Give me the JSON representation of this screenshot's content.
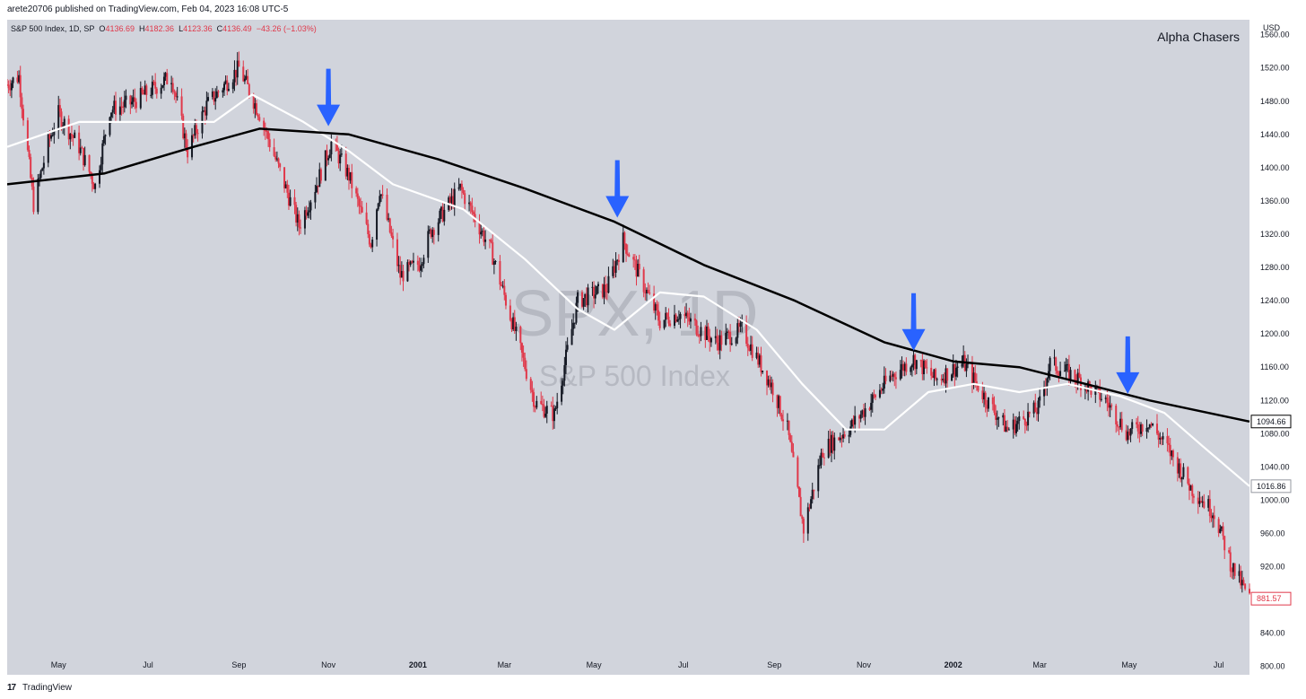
{
  "header": {
    "publisher": "arete20706 published on TradingView.com, Feb 04, 2023 16:08 UTC-5"
  },
  "legend": {
    "symbol": "S&P 500 Index, 1D, SP",
    "o_label": "O",
    "o": "4136.69",
    "h_label": "H",
    "h": "4182.36",
    "l_label": "L",
    "l": "4123.36",
    "c_label": "C",
    "c": "4136.49",
    "change": "−43.26 (−1.03%)"
  },
  "brand": "Alpha Chasers",
  "currency": "USD",
  "watermark": {
    "ticker": "SPX, 1D",
    "name": "S&P 500 Index"
  },
  "footer": {
    "logo": "17",
    "text": "TradingView"
  },
  "colors": {
    "background": "#d1d4dc",
    "up_candle": "#131722",
    "down_candle": "#e0384a",
    "sma_long": "#000000",
    "sma_short": "#ffffff",
    "arrow": "#2962ff"
  },
  "chart_data": {
    "type": "candlestick",
    "symbol": "S&P 500 Index, 1D",
    "x_ticks": [
      "May",
      "Jul",
      "Sep",
      "Nov",
      "2001",
      "Mar",
      "May",
      "Jul",
      "Sep",
      "Nov",
      "2002",
      "Mar",
      "May",
      "Jul"
    ],
    "x_tick_dates": [
      "2000-05-01",
      "2000-07-01",
      "2000-09-01",
      "2000-11-01",
      "2001-01-01",
      "2001-03-01",
      "2001-05-01",
      "2001-07-01",
      "2001-09-01",
      "2001-11-01",
      "2002-01-01",
      "2002-03-01",
      "2002-05-01",
      "2002-07-01"
    ],
    "y_ticks": [
      "800.00",
      "840.00",
      "880.00",
      "920.00",
      "960.00",
      "1000.00",
      "1040.00",
      "1080.00",
      "1120.00",
      "1160.00",
      "1200.00",
      "1240.00",
      "1280.00",
      "1320.00",
      "1360.00",
      "1400.00",
      "1440.00",
      "1480.00",
      "1520.00",
      "1560.00"
    ],
    "ylim": [
      790,
      1578
    ],
    "xlim": [
      "2000-03-27",
      "2002-07-22"
    ],
    "price_path": [
      {
        "date": "2000-03-27",
        "close": 1500
      },
      {
        "date": "2000-04-04",
        "close": 1510
      },
      {
        "date": "2000-04-14",
        "close": 1356
      },
      {
        "date": "2000-04-24",
        "close": 1430
      },
      {
        "date": "2000-05-01",
        "close": 1465
      },
      {
        "date": "2000-05-15",
        "close": 1425
      },
      {
        "date": "2000-05-26",
        "close": 1378
      },
      {
        "date": "2000-06-05",
        "close": 1470
      },
      {
        "date": "2000-06-20",
        "close": 1478
      },
      {
        "date": "2000-07-17",
        "close": 1510
      },
      {
        "date": "2000-07-28",
        "close": 1420
      },
      {
        "date": "2000-08-10",
        "close": 1475
      },
      {
        "date": "2000-09-01",
        "close": 1520
      },
      {
        "date": "2000-09-15",
        "close": 1465
      },
      {
        "date": "2000-10-12",
        "close": 1330
      },
      {
        "date": "2000-10-25",
        "close": 1385
      },
      {
        "date": "2000-11-03",
        "close": 1430
      },
      {
        "date": "2000-11-15",
        "close": 1390
      },
      {
        "date": "2000-11-30",
        "close": 1310
      },
      {
        "date": "2000-12-06",
        "close": 1375
      },
      {
        "date": "2000-12-20",
        "close": 1270
      },
      {
        "date": "2001-01-02",
        "close": 1285
      },
      {
        "date": "2001-01-10",
        "close": 1325
      },
      {
        "date": "2001-01-30",
        "close": 1375
      },
      {
        "date": "2001-02-20",
        "close": 1300
      },
      {
        "date": "2001-03-12",
        "close": 1180
      },
      {
        "date": "2001-03-22",
        "close": 1117
      },
      {
        "date": "2001-04-04",
        "close": 1103
      },
      {
        "date": "2001-04-20",
        "close": 1240
      },
      {
        "date": "2001-05-10",
        "close": 1255
      },
      {
        "date": "2001-05-21",
        "close": 1313
      },
      {
        "date": "2001-06-15",
        "close": 1215
      },
      {
        "date": "2001-06-28",
        "close": 1225
      },
      {
        "date": "2001-07-24",
        "close": 1190
      },
      {
        "date": "2001-08-10",
        "close": 1205
      },
      {
        "date": "2001-08-31",
        "close": 1135
      },
      {
        "date": "2001-09-10",
        "close": 1085
      },
      {
        "date": "2001-09-21",
        "close": 965
      },
      {
        "date": "2001-10-04",
        "close": 1060
      },
      {
        "date": "2001-10-24",
        "close": 1090
      },
      {
        "date": "2001-11-20",
        "close": 1150
      },
      {
        "date": "2001-12-05",
        "close": 1170
      },
      {
        "date": "2001-12-20",
        "close": 1145
      },
      {
        "date": "2002-01-08",
        "close": 1165
      },
      {
        "date": "2002-01-24",
        "close": 1120
      },
      {
        "date": "2002-02-07",
        "close": 1085
      },
      {
        "date": "2002-02-28",
        "close": 1110
      },
      {
        "date": "2002-03-08",
        "close": 1165
      },
      {
        "date": "2002-03-28",
        "close": 1145
      },
      {
        "date": "2002-04-15",
        "close": 1120
      },
      {
        "date": "2002-04-30",
        "close": 1080
      },
      {
        "date": "2002-05-14",
        "close": 1095
      },
      {
        "date": "2002-05-28",
        "close": 1060
      },
      {
        "date": "2002-06-12",
        "close": 1015
      },
      {
        "date": "2002-06-28",
        "close": 985
      },
      {
        "date": "2002-07-10",
        "close": 920
      },
      {
        "date": "2002-07-22",
        "close": 881.57
      }
    ],
    "sma_long": [
      {
        "date": "2000-03-27",
        "value": 1380
      },
      {
        "date": "2000-06-01",
        "value": 1393
      },
      {
        "date": "2000-08-01",
        "value": 1425
      },
      {
        "date": "2000-09-15",
        "value": 1447
      },
      {
        "date": "2000-11-15",
        "value": 1440
      },
      {
        "date": "2001-01-15",
        "value": 1410
      },
      {
        "date": "2001-03-15",
        "value": 1375
      },
      {
        "date": "2001-05-15",
        "value": 1335
      },
      {
        "date": "2001-07-15",
        "value": 1283
      },
      {
        "date": "2001-09-15",
        "value": 1240
      },
      {
        "date": "2001-11-15",
        "value": 1190
      },
      {
        "date": "2002-01-01",
        "value": 1167
      },
      {
        "date": "2002-02-15",
        "value": 1160
      },
      {
        "date": "2002-04-01",
        "value": 1140
      },
      {
        "date": "2002-05-15",
        "value": 1120
      },
      {
        "date": "2002-07-22",
        "value": 1094.66
      }
    ],
    "sma_short": [
      {
        "date": "2000-03-27",
        "value": 1425
      },
      {
        "date": "2000-05-15",
        "value": 1455
      },
      {
        "date": "2000-07-01",
        "value": 1455
      },
      {
        "date": "2000-08-15",
        "value": 1455
      },
      {
        "date": "2000-09-10",
        "value": 1488
      },
      {
        "date": "2000-10-15",
        "value": 1455
      },
      {
        "date": "2000-11-15",
        "value": 1420
      },
      {
        "date": "2000-12-15",
        "value": 1380
      },
      {
        "date": "2001-02-01",
        "value": 1350
      },
      {
        "date": "2001-03-15",
        "value": 1290
      },
      {
        "date": "2001-04-20",
        "value": 1230
      },
      {
        "date": "2001-05-15",
        "value": 1205
      },
      {
        "date": "2001-06-15",
        "value": 1250
      },
      {
        "date": "2001-07-15",
        "value": 1245
      },
      {
        "date": "2001-08-20",
        "value": 1205
      },
      {
        "date": "2001-09-20",
        "value": 1140
      },
      {
        "date": "2001-10-20",
        "value": 1085
      },
      {
        "date": "2001-11-15",
        "value": 1085
      },
      {
        "date": "2001-12-15",
        "value": 1130
      },
      {
        "date": "2002-01-15",
        "value": 1140
      },
      {
        "date": "2002-02-15",
        "value": 1130
      },
      {
        "date": "2002-03-20",
        "value": 1140
      },
      {
        "date": "2002-04-25",
        "value": 1125
      },
      {
        "date": "2002-05-25",
        "value": 1105
      },
      {
        "date": "2002-06-20",
        "value": 1065
      },
      {
        "date": "2002-07-22",
        "value": 1016.86
      }
    ],
    "last_values": {
      "sma_long": "1094.66",
      "sma_short": "1016.86",
      "close": "881.57"
    },
    "annotations": [
      {
        "type": "down-arrow",
        "date": "2000-11-01",
        "price": 1450
      },
      {
        "type": "down-arrow",
        "date": "2001-05-17",
        "price": 1340
      },
      {
        "type": "down-arrow",
        "date": "2001-12-05",
        "price": 1180
      },
      {
        "type": "down-arrow",
        "date": "2002-04-30",
        "price": 1128
      }
    ]
  }
}
